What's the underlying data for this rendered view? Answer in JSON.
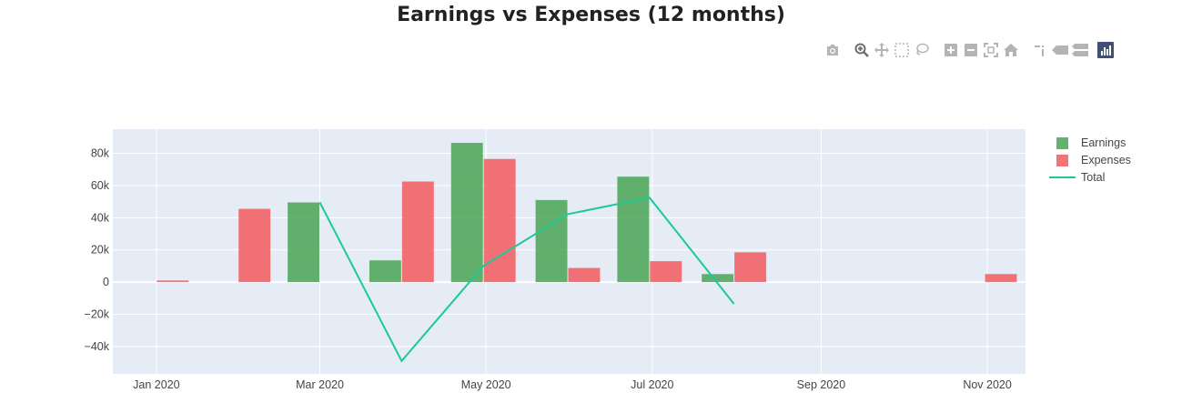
{
  "modebar": {
    "icons": [
      "camera-icon",
      "zoom-icon",
      "pan-icon",
      "box-select-icon",
      "lasso-icon",
      "zoom-in-icon",
      "zoom-out-icon",
      "autoscale-icon",
      "reset-axes-icon",
      "spike-lines-icon",
      "hover-closest-icon",
      "hover-compare-icon",
      "plotly-logo-icon"
    ]
  },
  "chart_data": {
    "type": "bar",
    "title": "Earnings vs Expenses (12 months)",
    "xlabel": "",
    "ylabel": "",
    "x_axis": {
      "type": "date",
      "range": [
        "2019-12-16",
        "2020-11-15"
      ],
      "tick_labels": [
        "Jan 2020",
        "Mar 2020",
        "May 2020",
        "Jul 2020",
        "Sep 2020",
        "Nov 2020"
      ],
      "tick_dates": [
        "2020-01-01",
        "2020-03-01",
        "2020-05-01",
        "2020-07-01",
        "2020-09-01",
        "2020-11-01"
      ]
    },
    "y_axis": {
      "range": [
        -57000,
        95000
      ],
      "tick_values": [
        -40000,
        -20000,
        0,
        20000,
        40000,
        60000,
        80000
      ],
      "tick_labels": [
        "−40k",
        "−20k",
        "0",
        "20k",
        "40k",
        "60k",
        "80k"
      ]
    },
    "grid": true,
    "barmode": "group",
    "legend_position": "top-right",
    "series": [
      {
        "name": "Earnings",
        "kind": "bar",
        "color": "#4aa453",
        "points": [
          {
            "x": "2020-01-01",
            "y": 0
          },
          {
            "x": "2020-01-31",
            "y": 0
          },
          {
            "x": "2020-03-01",
            "y": 49500
          },
          {
            "x": "2020-03-31",
            "y": 13500
          },
          {
            "x": "2020-04-30",
            "y": 86500
          },
          {
            "x": "2020-05-31",
            "y": 51000
          },
          {
            "x": "2020-06-30",
            "y": 65500
          },
          {
            "x": "2020-07-31",
            "y": 5000
          },
          {
            "x": "2020-10-31",
            "y": 0
          }
        ]
      },
      {
        "name": "Expenses",
        "kind": "bar",
        "color": "#f25a5f",
        "points": [
          {
            "x": "2020-01-01",
            "y": 1000
          },
          {
            "x": "2020-01-31",
            "y": 45500
          },
          {
            "x": "2020-03-01",
            "y": 0
          },
          {
            "x": "2020-03-31",
            "y": 62500
          },
          {
            "x": "2020-04-30",
            "y": 76500
          },
          {
            "x": "2020-05-31",
            "y": 8800
          },
          {
            "x": "2020-06-30",
            "y": 13000
          },
          {
            "x": "2020-07-31",
            "y": 18500
          },
          {
            "x": "2020-10-31",
            "y": 5000
          }
        ]
      },
      {
        "name": "Total",
        "kind": "line",
        "color": "#1ec994",
        "points": [
          {
            "x": "2020-03-01",
            "y": 49500
          },
          {
            "x": "2020-03-31",
            "y": -49000
          },
          {
            "x": "2020-04-30",
            "y": 10000
          },
          {
            "x": "2020-05-31",
            "y": 42200
          },
          {
            "x": "2020-06-30",
            "y": 52500
          },
          {
            "x": "2020-07-31",
            "y": -13500
          }
        ]
      }
    ]
  }
}
